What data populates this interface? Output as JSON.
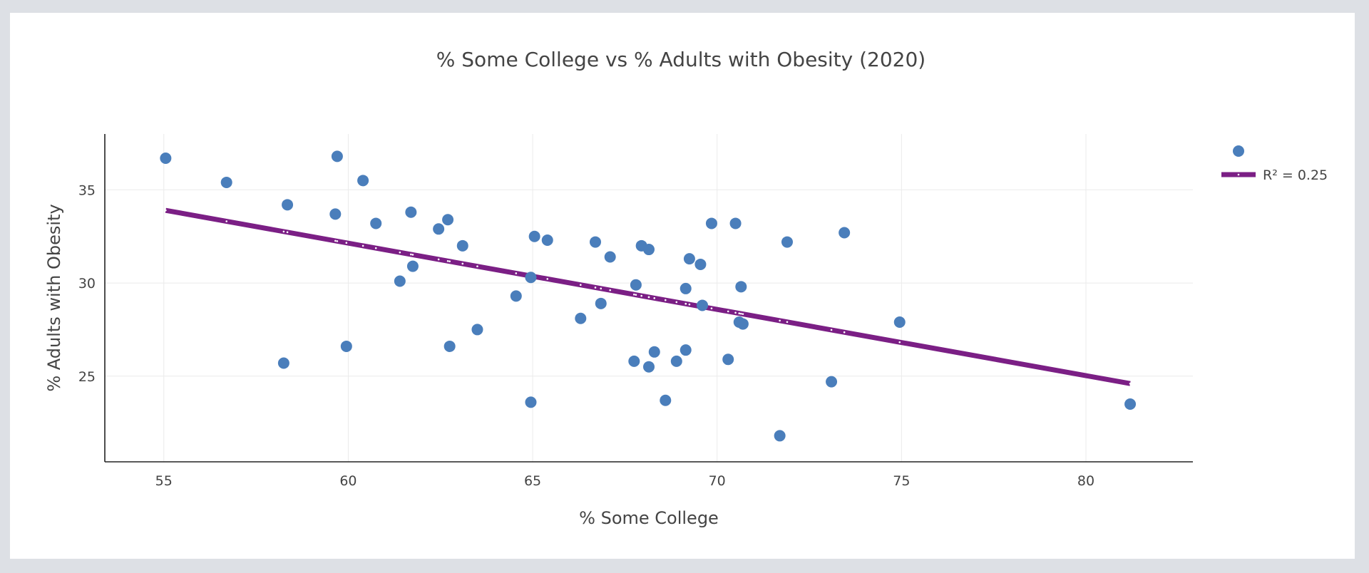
{
  "chart_data": {
    "type": "scatter",
    "title": "% Some College vs % Adults with Obesity (2020)",
    "xlabel": "% Some College",
    "ylabel": "% Adults with Obesity",
    "xlim": [
      53.4,
      82.9
    ],
    "ylim": [
      20.4,
      38.0
    ],
    "xticks": [
      55,
      60,
      65,
      70,
      75,
      80
    ],
    "yticks": [
      25,
      30,
      35
    ],
    "grid": true,
    "legend_position": "right",
    "points": [
      {
        "x": 55.05,
        "y": 36.7
      },
      {
        "x": 56.7,
        "y": 35.4
      },
      {
        "x": 58.25,
        "y": 25.7
      },
      {
        "x": 58.35,
        "y": 34.2
      },
      {
        "x": 59.65,
        "y": 33.7
      },
      {
        "x": 59.7,
        "y": 36.8
      },
      {
        "x": 59.95,
        "y": 26.6
      },
      {
        "x": 60.4,
        "y": 35.5
      },
      {
        "x": 60.75,
        "y": 33.2
      },
      {
        "x": 61.4,
        "y": 30.1
      },
      {
        "x": 61.7,
        "y": 33.8
      },
      {
        "x": 61.75,
        "y": 30.9
      },
      {
        "x": 62.45,
        "y": 32.9
      },
      {
        "x": 62.7,
        "y": 33.4
      },
      {
        "x": 62.75,
        "y": 26.6
      },
      {
        "x": 63.1,
        "y": 32.0
      },
      {
        "x": 63.5,
        "y": 27.5
      },
      {
        "x": 64.55,
        "y": 29.3
      },
      {
        "x": 64.95,
        "y": 30.3
      },
      {
        "x": 64.95,
        "y": 23.6
      },
      {
        "x": 65.05,
        "y": 32.5
      },
      {
        "x": 65.4,
        "y": 32.3
      },
      {
        "x": 66.3,
        "y": 28.1
      },
      {
        "x": 66.7,
        "y": 32.2
      },
      {
        "x": 66.85,
        "y": 28.9
      },
      {
        "x": 67.1,
        "y": 31.4
      },
      {
        "x": 67.75,
        "y": 25.8
      },
      {
        "x": 67.8,
        "y": 29.9
      },
      {
        "x": 67.95,
        "y": 32.0
      },
      {
        "x": 68.15,
        "y": 31.8
      },
      {
        "x": 68.15,
        "y": 25.5
      },
      {
        "x": 68.3,
        "y": 26.3
      },
      {
        "x": 68.6,
        "y": 23.7
      },
      {
        "x": 68.9,
        "y": 25.8
      },
      {
        "x": 69.15,
        "y": 29.7
      },
      {
        "x": 69.15,
        "y": 26.4
      },
      {
        "x": 69.25,
        "y": 31.3
      },
      {
        "x": 69.55,
        "y": 31.0
      },
      {
        "x": 69.6,
        "y": 28.8
      },
      {
        "x": 69.85,
        "y": 33.2
      },
      {
        "x": 70.3,
        "y": 25.9
      },
      {
        "x": 70.5,
        "y": 33.2
      },
      {
        "x": 70.6,
        "y": 27.9
      },
      {
        "x": 70.65,
        "y": 29.8
      },
      {
        "x": 70.7,
        "y": 27.8
      },
      {
        "x": 71.7,
        "y": 21.8
      },
      {
        "x": 71.9,
        "y": 32.2
      },
      {
        "x": 73.1,
        "y": 24.7
      },
      {
        "x": 73.45,
        "y": 32.7
      },
      {
        "x": 74.95,
        "y": 27.9
      },
      {
        "x": 81.2,
        "y": 23.5
      }
    ],
    "trendline": {
      "x": [
        55.05,
        81.2
      ],
      "y": [
        33.9,
        24.6
      ],
      "label": "R² = 0.25"
    },
    "colors": {
      "points": "#4a7ebb",
      "trendline": "#7b1f85"
    }
  }
}
